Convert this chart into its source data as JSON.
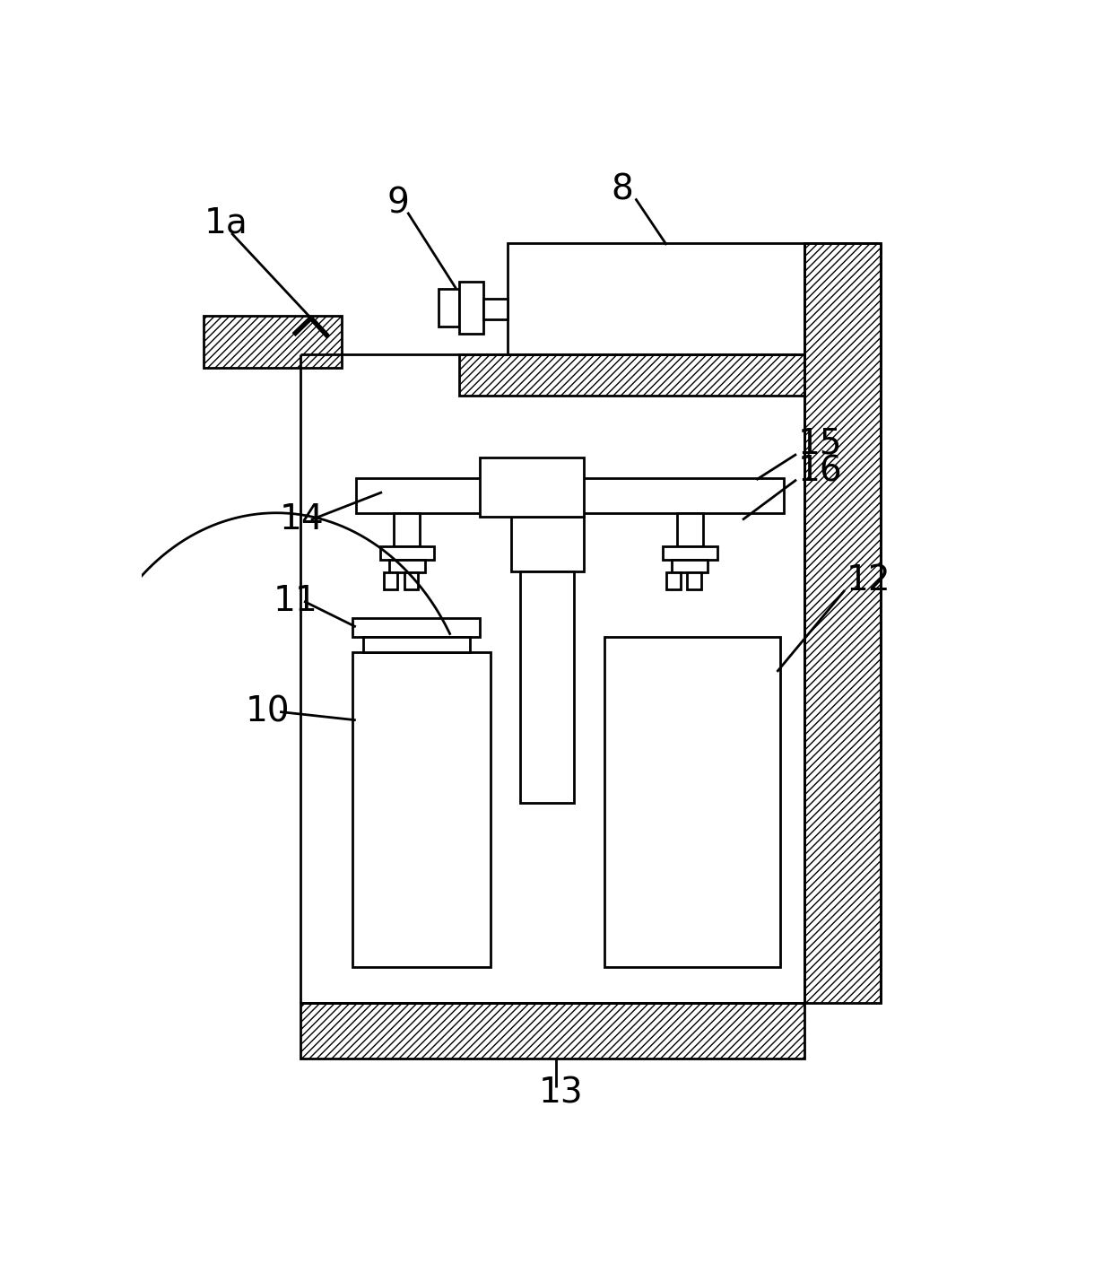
{
  "bg_color": "#ffffff",
  "line_color": "#000000",
  "figsize": [
    12.4,
    14.28
  ],
  "dpi": 100,
  "lw": 2.0
}
